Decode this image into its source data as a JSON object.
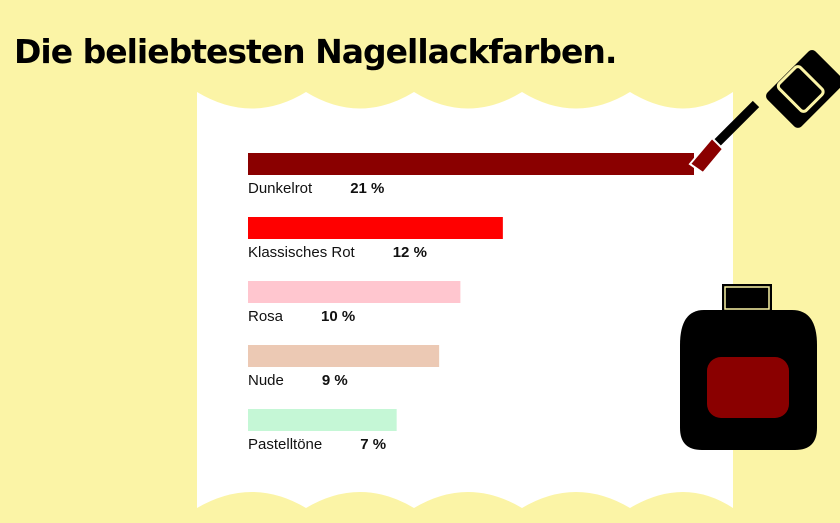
{
  "title": "Die beliebtesten Nagellackfarben.",
  "colors": {
    "background": "#fbf4a6",
    "paper": "#ffffff",
    "polish": "#8a0000",
    "bottle": "#000000"
  },
  "chart_data": {
    "type": "bar",
    "orientation": "horizontal",
    "title": "Die beliebtesten Nagellackfarben.",
    "unit": "%",
    "categories": [
      "Dunkelrot",
      "Klassisches Rot",
      "Rosa",
      "Nude",
      "Pastelltöne"
    ],
    "values": [
      21,
      12,
      10,
      9,
      7
    ],
    "value_labels": [
      "21 %",
      "12 %",
      "10 %",
      "9 %",
      "7 %"
    ],
    "bar_colors": [
      "#8a0000",
      "#ff0000",
      "#ffc6cf",
      "#ecc9b4",
      "#c5f7d6"
    ],
    "xlim": [
      0,
      21
    ],
    "grid": false,
    "legend": "none"
  }
}
